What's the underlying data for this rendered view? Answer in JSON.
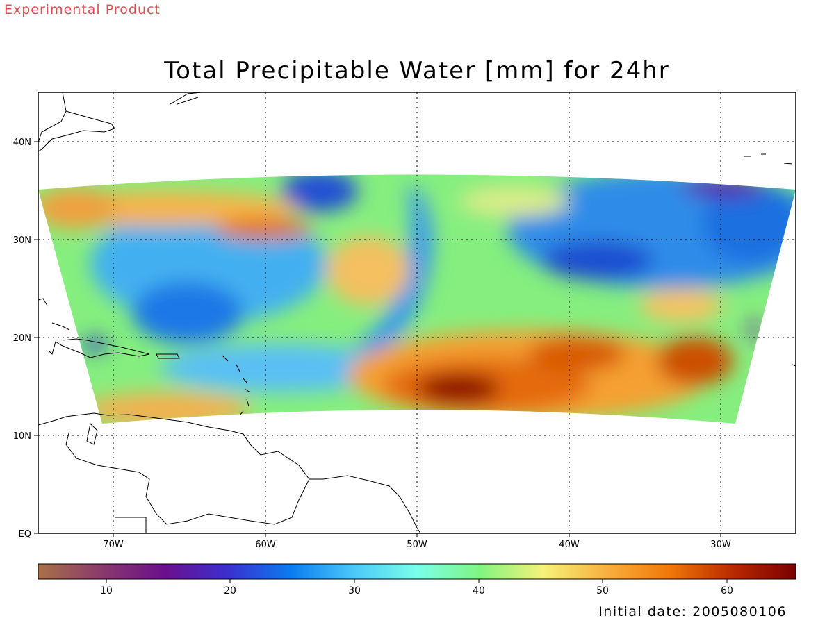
{
  "header": {
    "product_tag": "Experimental Product",
    "title": "Total Precipitable Water [mm] for 24hr"
  },
  "map": {
    "lat_ticks": [
      "EQ",
      "10N",
      "20N",
      "30N",
      "40N"
    ],
    "lon_ticks": [
      "70W",
      "60W",
      "50W",
      "40W",
      "30W"
    ]
  },
  "colorbar": {
    "tick_labels": [
      "10",
      "20",
      "30",
      "40",
      "50",
      "60"
    ],
    "stops": [
      "#a87248",
      "#8a3a6c",
      "#6b0f8c",
      "#3b2fcf",
      "#0a7cf0",
      "#4cc8f8",
      "#7affea",
      "#80f480",
      "#f6f27a",
      "#f8b040",
      "#f07808",
      "#b82a00",
      "#7a0000"
    ]
  },
  "footer": {
    "initial_date": "Initial date: 2005080106"
  }
}
